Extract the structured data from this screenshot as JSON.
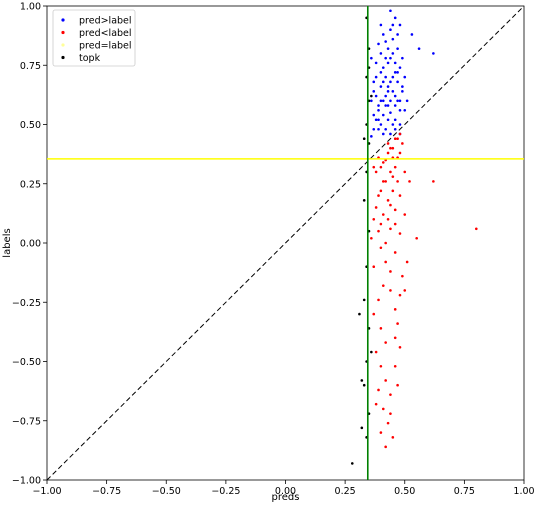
{
  "chart_data": {
    "type": "scatter",
    "xlabel": "preds",
    "ylabel": "labels",
    "xlim": [
      -1.0,
      1.0
    ],
    "ylim": [
      -1.0,
      1.0
    ],
    "x_ticks": [
      "−1.00",
      "−0.75",
      "−0.50",
      "−0.25",
      "0.00",
      "0.25",
      "0.50",
      "0.75",
      "1.00"
    ],
    "y_ticks": [
      "−1.00",
      "−0.75",
      "−0.50",
      "−0.25",
      "0.00",
      "0.25",
      "0.50",
      "0.75",
      "1.00"
    ],
    "x_tick_values": [
      -1.0,
      -0.75,
      -0.5,
      -0.25,
      0.0,
      0.25,
      0.5,
      0.75,
      1.0
    ],
    "y_tick_values": [
      -1.0,
      -0.75,
      -0.5,
      -0.25,
      0.0,
      0.25,
      0.5,
      0.75,
      1.0
    ],
    "grid": false,
    "legend_position": "top-left",
    "legend": [
      {
        "label": "pred>label",
        "color": "#0000ff"
      },
      {
        "label": "pred<label",
        "color": "#ff0000"
      },
      {
        "label": "pred=label",
        "color": "#ffff99"
      },
      {
        "label": "topk",
        "color": "#000000"
      }
    ],
    "reference_lines": {
      "diagonal": {
        "from": [
          -1.0,
          -1.0
        ],
        "to": [
          1.0,
          1.0
        ],
        "style": "dashed",
        "color": "#000000"
      },
      "vertical": {
        "x": 0.345,
        "color": "#008000"
      },
      "horizontal": {
        "y": 0.355,
        "color": "#ffff00"
      }
    },
    "series": [
      {
        "name": "pred>label",
        "color": "#0000ff",
        "points": [
          [
            0.36,
            0.45
          ],
          [
            0.38,
            0.52
          ],
          [
            0.4,
            0.6
          ],
          [
            0.42,
            0.48
          ],
          [
            0.44,
            0.55
          ],
          [
            0.46,
            0.62
          ],
          [
            0.48,
            0.5
          ],
          [
            0.45,
            0.7
          ],
          [
            0.43,
            0.66
          ],
          [
            0.41,
            0.74
          ],
          [
            0.39,
            0.58
          ],
          [
            0.37,
            0.64
          ],
          [
            0.4,
            0.8
          ],
          [
            0.44,
            0.78
          ],
          [
            0.46,
            0.72
          ],
          [
            0.48,
            0.6
          ],
          [
            0.42,
            0.85
          ],
          [
            0.44,
            0.9
          ],
          [
            0.46,
            0.95
          ],
          [
            0.4,
            0.92
          ],
          [
            0.38,
            0.7
          ],
          [
            0.36,
            0.78
          ],
          [
            0.5,
            0.56
          ],
          [
            0.49,
            0.66
          ],
          [
            0.47,
            0.82
          ],
          [
            0.45,
            0.86
          ],
          [
            0.43,
            0.52
          ],
          [
            0.41,
            0.46
          ],
          [
            0.39,
            0.48
          ],
          [
            0.37,
            0.54
          ],
          [
            0.47,
            0.68
          ],
          [
            0.45,
            0.5
          ],
          [
            0.42,
            0.62
          ],
          [
            0.44,
            0.68
          ],
          [
            0.46,
            0.76
          ],
          [
            0.48,
            0.74
          ],
          [
            0.4,
            0.66
          ],
          [
            0.38,
            0.62
          ],
          [
            0.43,
            0.58
          ],
          [
            0.41,
            0.54
          ],
          [
            0.39,
            0.84
          ],
          [
            0.41,
            0.88
          ],
          [
            0.43,
            0.76
          ],
          [
            0.45,
            0.8
          ],
          [
            0.47,
            0.88
          ],
          [
            0.49,
            0.78
          ],
          [
            0.48,
            0.92
          ],
          [
            0.44,
            0.98
          ],
          [
            0.46,
            0.58
          ],
          [
            0.42,
            0.7
          ],
          [
            0.4,
            0.72
          ],
          [
            0.38,
            0.76
          ],
          [
            0.36,
            0.6
          ],
          [
            0.37,
            0.68
          ],
          [
            0.39,
            0.52
          ],
          [
            0.5,
            0.7
          ],
          [
            0.44,
            0.46
          ],
          [
            0.46,
            0.52
          ],
          [
            0.48,
            0.56
          ],
          [
            0.42,
            0.78
          ],
          [
            0.41,
            0.6
          ],
          [
            0.43,
            0.64
          ],
          [
            0.45,
            0.64
          ],
          [
            0.47,
            0.6
          ],
          [
            0.49,
            0.64
          ],
          [
            0.51,
            0.6
          ],
          [
            0.43,
            0.82
          ],
          [
            0.45,
            0.92
          ],
          [
            0.47,
            0.72
          ],
          [
            0.39,
            0.56
          ],
          [
            0.41,
            0.68
          ],
          [
            0.37,
            0.48
          ],
          [
            0.56,
            0.82
          ],
          [
            0.62,
            0.8
          ],
          [
            0.53,
            0.88
          ],
          [
            0.48,
            0.46
          ],
          [
            0.46,
            0.48
          ],
          [
            0.44,
            0.6
          ],
          [
            0.42,
            0.58
          ],
          [
            0.4,
            0.5
          ]
        ]
      },
      {
        "name": "pred<label",
        "color": "#ff0000",
        "points": [
          [
            0.38,
            0.3
          ],
          [
            0.4,
            0.22
          ],
          [
            0.42,
            0.35
          ],
          [
            0.44,
            0.4
          ],
          [
            0.46,
            0.32
          ],
          [
            0.48,
            0.38
          ],
          [
            0.45,
            0.28
          ],
          [
            0.43,
            0.18
          ],
          [
            0.41,
            0.12
          ],
          [
            0.39,
            0.05
          ],
          [
            0.37,
            0.1
          ],
          [
            0.4,
            -0.02
          ],
          [
            0.42,
            0.0
          ],
          [
            0.44,
            0.06
          ],
          [
            0.46,
            0.14
          ],
          [
            0.48,
            0.2
          ],
          [
            0.47,
            0.26
          ],
          [
            0.45,
            0.36
          ],
          [
            0.43,
            0.42
          ],
          [
            0.41,
            0.26
          ],
          [
            0.39,
            0.2
          ],
          [
            0.38,
            0.15
          ],
          [
            0.4,
            0.08
          ],
          [
            0.42,
            -0.08
          ],
          [
            0.44,
            -0.12
          ],
          [
            0.46,
            -0.04
          ],
          [
            0.48,
            0.04
          ],
          [
            0.5,
            0.3
          ],
          [
            0.49,
            0.42
          ],
          [
            0.47,
            0.44
          ],
          [
            0.45,
            0.22
          ],
          [
            0.43,
            0.1
          ],
          [
            0.41,
            -0.18
          ],
          [
            0.39,
            -0.24
          ],
          [
            0.37,
            -0.3
          ],
          [
            0.4,
            -0.36
          ],
          [
            0.42,
            -0.42
          ],
          [
            0.44,
            -0.2
          ],
          [
            0.46,
            -0.28
          ],
          [
            0.48,
            -0.22
          ],
          [
            0.38,
            -0.46
          ],
          [
            0.4,
            -0.52
          ],
          [
            0.42,
            -0.58
          ],
          [
            0.44,
            -0.64
          ],
          [
            0.46,
            -0.4
          ],
          [
            0.47,
            -0.34
          ],
          [
            0.49,
            -0.14
          ],
          [
            0.5,
            -0.2
          ],
          [
            0.39,
            -0.62
          ],
          [
            0.41,
            -0.7
          ],
          [
            0.43,
            -0.76
          ],
          [
            0.45,
            -0.82
          ],
          [
            0.47,
            -0.6
          ],
          [
            0.38,
            -0.68
          ],
          [
            0.4,
            -0.8
          ],
          [
            0.42,
            -0.86
          ],
          [
            0.44,
            -0.72
          ],
          [
            0.46,
            -0.52
          ],
          [
            0.48,
            -0.44
          ],
          [
            0.37,
            -0.1
          ],
          [
            0.36,
            0.02
          ],
          [
            0.5,
            0.12
          ],
          [
            0.51,
            -0.08
          ],
          [
            0.52,
            0.26
          ],
          [
            0.55,
            0.02
          ],
          [
            0.8,
            0.06
          ],
          [
            0.62,
            0.26
          ],
          [
            0.44,
            0.3
          ],
          [
            0.42,
            0.26
          ],
          [
            0.4,
            0.32
          ],
          [
            0.46,
            0.44
          ],
          [
            0.48,
            0.46
          ],
          [
            0.43,
            0.38
          ],
          [
            0.45,
            0.4
          ],
          [
            0.47,
            0.36
          ],
          [
            0.41,
            0.34
          ],
          [
            0.39,
            0.36
          ],
          [
            0.37,
            0.32
          ],
          [
            0.44,
            0.16
          ],
          [
            0.46,
            0.08
          ]
        ]
      },
      {
        "name": "topk",
        "color": "#000000",
        "points": [
          [
            0.34,
            0.95
          ],
          [
            0.35,
            0.82
          ],
          [
            0.34,
            0.7
          ],
          [
            0.35,
            0.6
          ],
          [
            0.34,
            0.5
          ],
          [
            0.35,
            0.42
          ],
          [
            0.34,
            0.3
          ],
          [
            0.33,
            0.18
          ],
          [
            0.35,
            0.05
          ],
          [
            0.34,
            -0.1
          ],
          [
            0.33,
            -0.24
          ],
          [
            0.35,
            -0.36
          ],
          [
            0.34,
            -0.5
          ],
          [
            0.33,
            -0.6
          ],
          [
            0.35,
            -0.72
          ],
          [
            0.34,
            -0.82
          ],
          [
            0.28,
            -0.93
          ],
          [
            0.32,
            -0.78
          ],
          [
            0.31,
            -0.3
          ],
          [
            0.32,
            -0.58
          ],
          [
            0.33,
            0.44
          ],
          [
            0.35,
            0.74
          ],
          [
            0.36,
            -0.46
          ],
          [
            0.36,
            0.62
          ]
        ]
      }
    ]
  }
}
